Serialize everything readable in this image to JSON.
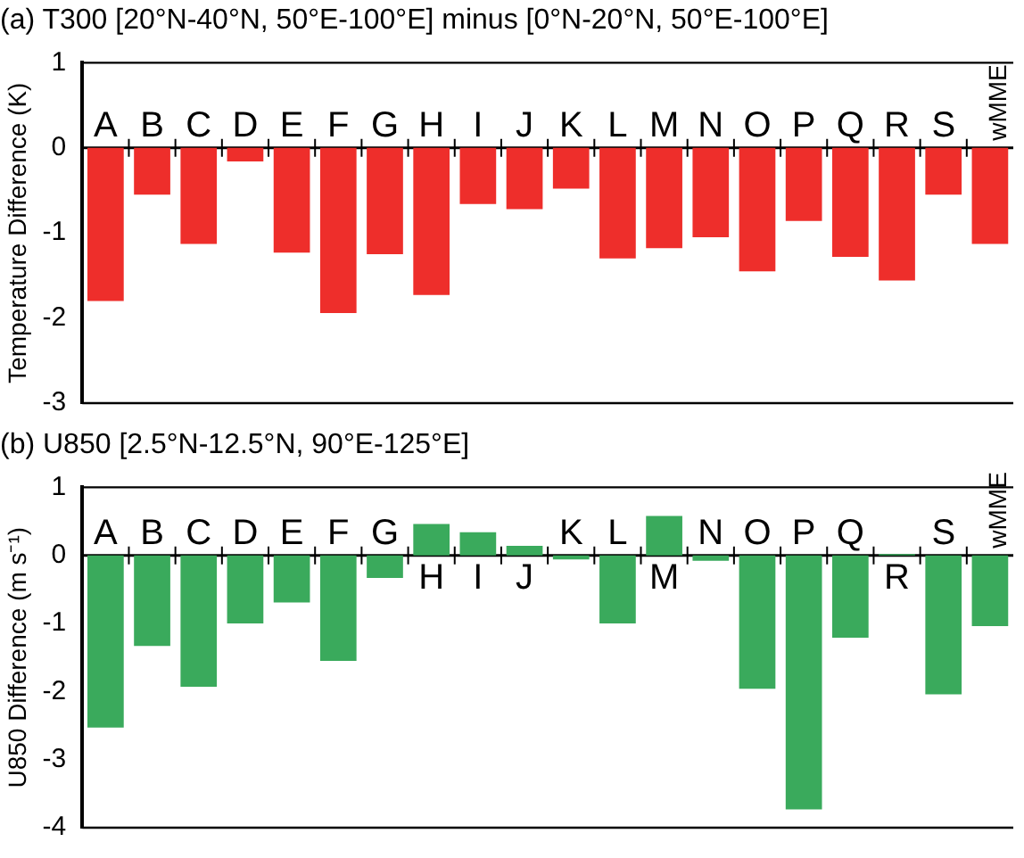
{
  "chart_data": [
    {
      "type": "bar",
      "title": "(a) T300 [20°N-40°N, 50°E-100°E] minus [0°N-20°N, 50°E-100°E]",
      "ylabel": "Temperature Difference (K)",
      "categories": [
        "A",
        "B",
        "C",
        "D",
        "E",
        "F",
        "G",
        "H",
        "I",
        "J",
        "K",
        "L",
        "M",
        "N",
        "O",
        "P",
        "Q",
        "R",
        "S",
        "wMME"
      ],
      "series": [
        {
          "color": "#ee2e2b",
          "values": [
            -1.8,
            -0.55,
            -1.13,
            -0.16,
            -1.23,
            -1.94,
            -1.25,
            -1.73,
            -0.66,
            -0.72,
            -0.48,
            -1.3,
            -1.18,
            -1.05,
            -1.45,
            -0.86,
            -1.28,
            -1.56,
            -0.55,
            -1.13
          ]
        }
      ],
      "ylim": [
        -3,
        1
      ],
      "yticks": [
        -3,
        -2,
        -1,
        0,
        1
      ],
      "grid": false,
      "legend": false
    },
    {
      "type": "bar",
      "title": "(b) U850 [2.5°N-12.5°N, 90°E-125°E]",
      "ylabel": "U850 Difference (m s⁻¹)",
      "categories": [
        "A",
        "B",
        "C",
        "D",
        "E",
        "F",
        "G",
        "H",
        "I",
        "J",
        "K",
        "L",
        "M",
        "N",
        "O",
        "P",
        "Q",
        "R",
        "S",
        "wMME"
      ],
      "series": [
        {
          "color": "#3aaa5c",
          "values": [
            -2.53,
            -1.33,
            -1.93,
            -1.0,
            -0.69,
            -1.55,
            -0.33,
            0.46,
            0.34,
            0.14,
            -0.06,
            -1.0,
            0.58,
            -0.08,
            -1.96,
            -3.73,
            -1.21,
            0.02,
            -2.04,
            -1.04
          ]
        }
      ],
      "ylim": [
        -4,
        1
      ],
      "yticks": [
        -4,
        -3,
        -2,
        -1,
        0,
        1
      ],
      "grid": false,
      "legend": false
    }
  ]
}
